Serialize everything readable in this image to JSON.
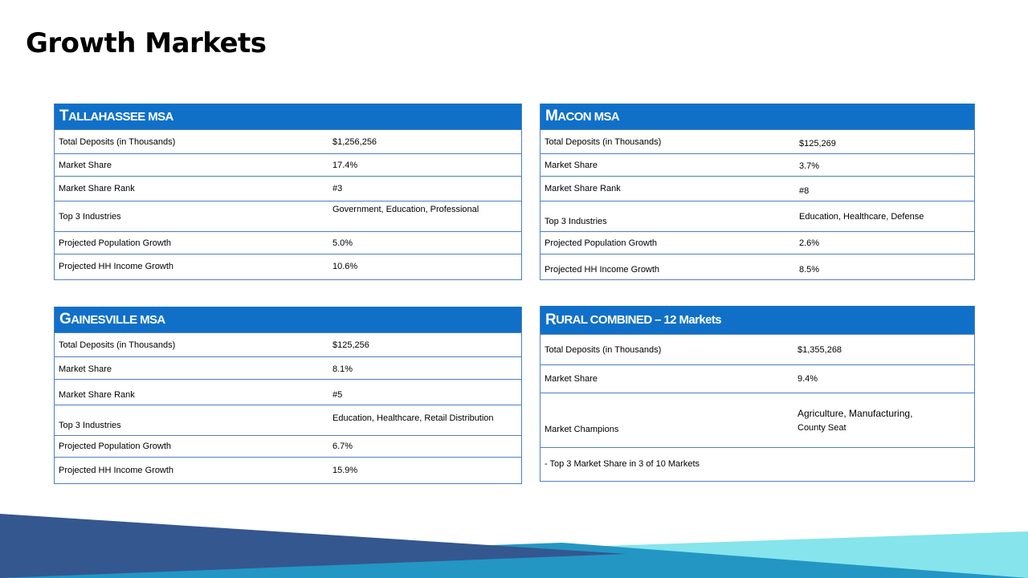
{
  "title": "Growth Markets",
  "colors": {
    "header": "#1070c8",
    "border": "#4d7fc4",
    "band_dark": "#34578f",
    "band_mid": "#2496c4",
    "band_light": "#86e4ec"
  },
  "cards": [
    {
      "title_cap": "T",
      "title_rest": "ALLAHASSEE MSA",
      "rows": [
        {
          "label": "Total Deposits (in Thousands)",
          "value": "$1,256,256"
        },
        {
          "label": "Market Share",
          "value": "17.4%"
        },
        {
          "label": "Market Share Rank",
          "value": "#3"
        },
        {
          "label": "Top 3 Industries",
          "value": "Government,  Education, Professional"
        },
        {
          "label": "Projected Population Growth",
          "value": "5.0%"
        },
        {
          "label": "Projected  HH Income Growth",
          "value": "10.6%"
        }
      ]
    },
    {
      "title_cap": "M",
      "title_rest": "ACON MSA",
      "rows": [
        {
          "label": "Total Deposits (in Thousands)",
          "value": "$125,269"
        },
        {
          "label": "Market Share",
          "value": "3.7%"
        },
        {
          "label": "Market Share Rank",
          "value": "#8"
        },
        {
          "label": "Top 3 Industries",
          "value": "Education, Healthcare, Defense"
        },
        {
          "label": "Projected Population Growth",
          "value": "2.6%"
        },
        {
          "label": "Projected  HH Income Growth",
          "value": "8.5%"
        }
      ]
    },
    {
      "title_cap": "G",
      "title_rest": "AINESVILLE MSA",
      "rows": [
        {
          "label": "Total Deposits (in Thousands)",
          "value": "$125,256"
        },
        {
          "label": "Market Share",
          "value": "8.1%"
        },
        {
          "label": "Market Share Rank",
          "value": "#5"
        },
        {
          "label": "Top 3 Industries",
          "value": "Education, Healthcare, Retail Distribution"
        },
        {
          "label": "Projected  Population Growth",
          "value": "6.7%"
        },
        {
          "label": "Projected  HH Income Growth",
          "value": "15.9%"
        }
      ]
    },
    {
      "title_cap": "R",
      "title_rest": "URAL COMBINED – 12 Markets",
      "rows": [
        {
          "label": "Total Deposits (in Thousands)",
          "value": "$1,355,268"
        },
        {
          "label": "Market Share",
          "value": "9.4%"
        },
        {
          "label": "Market Champions",
          "value_line1": "Agriculture, Manufacturing,",
          "value_line2": "County Seat"
        },
        {
          "label": "- Top 3 Market Share in 3 of 10 Markets"
        }
      ]
    }
  ]
}
